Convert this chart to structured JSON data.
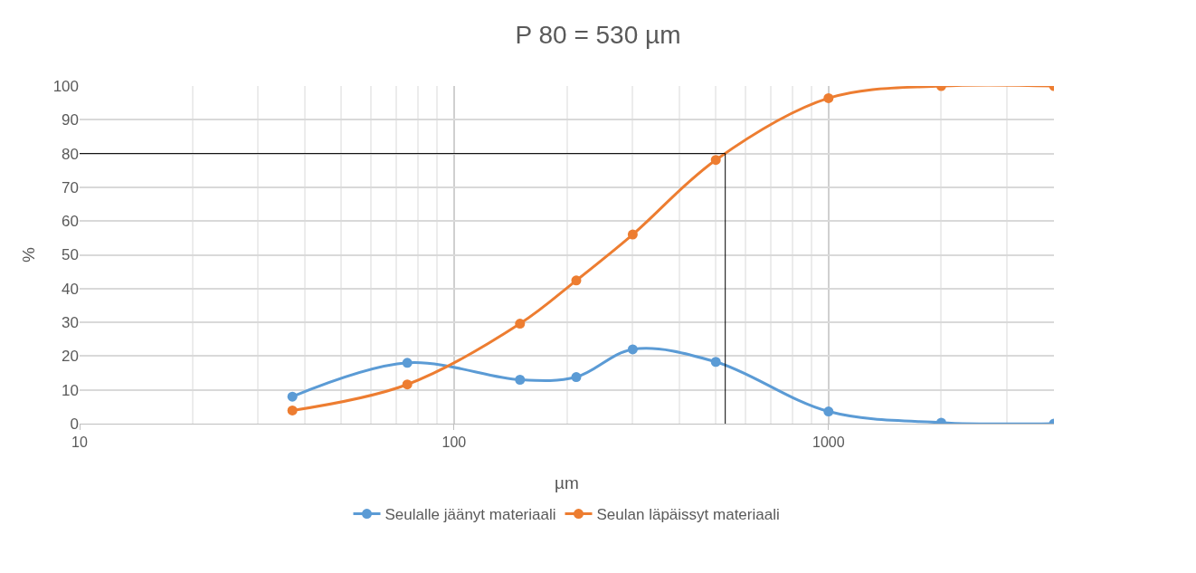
{
  "chart_data": {
    "type": "line",
    "title": "P 80 = 530 µm",
    "xlabel": "µm",
    "ylabel": "%",
    "x": [
      37,
      75,
      150,
      212,
      300,
      500,
      1000,
      2000,
      4000
    ],
    "series": [
      {
        "name": "Seulalle jäänyt materiaali",
        "color": "#5b9bd5",
        "values": [
          8,
          18,
          13,
          13.8,
          22,
          18.3,
          3.6,
          0.3,
          0
        ]
      },
      {
        "name": "Seulan läpäissyt materiaali",
        "color": "#ed7d31",
        "values": [
          3.9,
          11.6,
          29.6,
          42.4,
          56,
          78.1,
          96.4,
          100,
          100
        ]
      }
    ],
    "log": "x",
    "xlim": [
      10,
      4000
    ],
    "xticks": [
      10,
      100,
      1000
    ],
    "ylim": [
      0,
      100
    ],
    "yticks": [
      0,
      10,
      20,
      30,
      40,
      50,
      60,
      70,
      80,
      90,
      100
    ],
    "grid": true,
    "legend": "bottom",
    "marker": "circle",
    "line_style": "solid",
    "ref_lines": [
      {
        "axis": "y",
        "value": 80,
        "color": "#000000"
      },
      {
        "axis": "x",
        "value": 530,
        "color": "#000000"
      }
    ]
  }
}
